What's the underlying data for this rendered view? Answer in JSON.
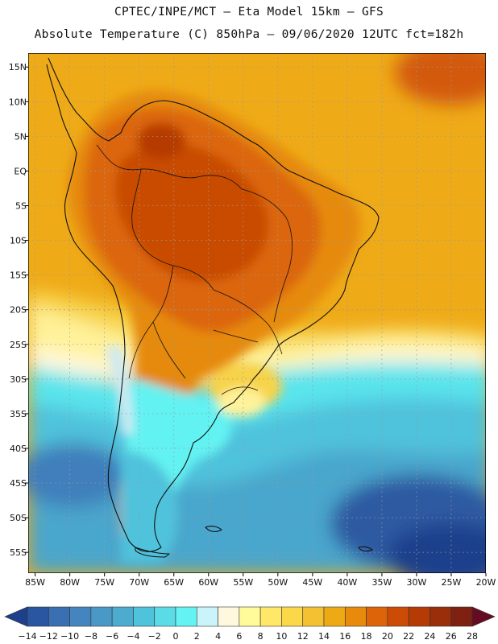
{
  "title_line1": "CPTEC/INPE/MCT —  Eta Model 15km — GFS",
  "title_line2": "Absolute Temperature (C) 850hPa — 09/06/2020 12UTC fct=182h",
  "map": {
    "lon_range": [
      -86,
      -20
    ],
    "lat_range": [
      -58,
      17
    ],
    "lon_labels": [
      "85W",
      "80W",
      "75W",
      "70W",
      "65W",
      "60W",
      "55W",
      "50W",
      "45W",
      "40W",
      "35W",
      "30W",
      "25W",
      "20W"
    ],
    "lat_labels": [
      "15N",
      "10N",
      "5N",
      "EQ",
      "5S",
      "10S",
      "15S",
      "20S",
      "25S",
      "30S",
      "35S",
      "40S",
      "45S",
      "50S",
      "55S"
    ],
    "grid": "dotted"
  },
  "colorbar": {
    "levels": [
      "-14",
      "-12",
      "-10",
      "-8",
      "-6",
      "-4",
      "-2",
      "0",
      "2",
      "4",
      "6",
      "8",
      "10",
      "12",
      "14",
      "16",
      "18",
      "20",
      "22",
      "24",
      "26",
      "28"
    ],
    "colors": [
      "#1d3f8c",
      "#2a55a0",
      "#3a6fb2",
      "#4585bf",
      "#4a98c6",
      "#4dabcf",
      "#4fc2dc",
      "#5adbe6",
      "#64f2f2",
      "#caf3fa",
      "#fff8de",
      "#fffa9a",
      "#ffe768",
      "#fad84a",
      "#f3c132",
      "#eeaa14",
      "#e88a0c",
      "#dd6408",
      "#cc4c06",
      "#b53b06",
      "#9b2e0a",
      "#7e2012",
      "#660c22"
    ]
  }
}
